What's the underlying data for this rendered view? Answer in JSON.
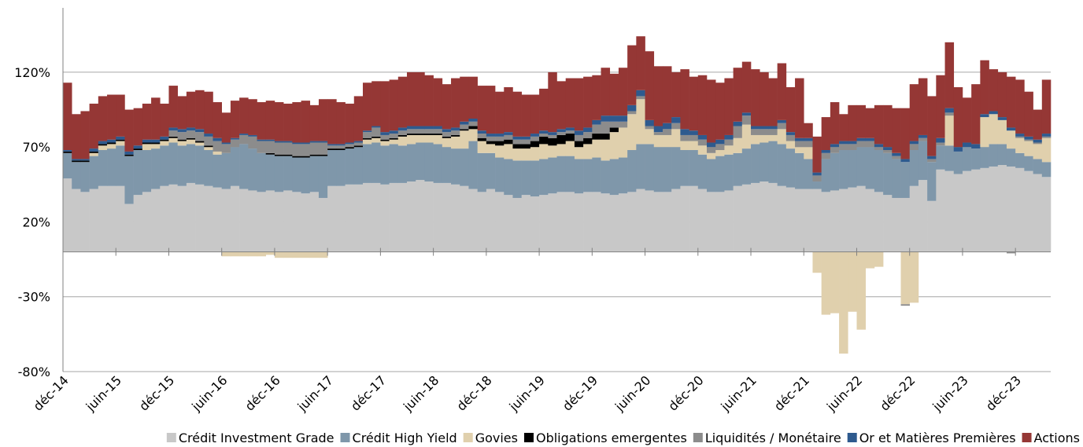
{
  "chart_data": {
    "type": "stacked-bar",
    "categories": [
      "déc-14",
      null,
      null,
      null,
      null,
      null,
      "juin-15",
      null,
      null,
      null,
      null,
      null,
      "déc-15",
      null,
      null,
      null,
      null,
      null,
      "juin-16",
      null,
      null,
      null,
      null,
      null,
      "déc-16",
      null,
      null,
      null,
      null,
      null,
      "juin-17",
      null,
      null,
      null,
      null,
      null,
      "déc-17",
      null,
      null,
      null,
      null,
      null,
      "juin-18",
      null,
      null,
      null,
      null,
      null,
      "déc-18",
      null,
      null,
      null,
      null,
      null,
      "juin-19",
      null,
      null,
      null,
      null,
      null,
      "déc-19",
      null,
      null,
      null,
      null,
      null,
      "juin-20",
      null,
      null,
      null,
      null,
      null,
      "déc-20",
      null,
      null,
      null,
      null,
      null,
      "juin-21",
      null,
      null,
      null,
      null,
      null,
      "déc-21",
      null,
      null,
      null,
      null,
      null,
      "juin-22",
      null,
      null,
      null,
      null,
      null,
      "déc-22",
      null,
      null,
      null,
      null,
      null,
      "juin-23",
      null,
      null,
      null,
      null,
      null,
      "déc-23",
      null,
      null,
      null
    ],
    "series": [
      {
        "name": "Crédit Investment Grade",
        "color": "#c8c8c8",
        "values": [
          49,
          42,
          40,
          42,
          44,
          44,
          44,
          32,
          38,
          40,
          42,
          44,
          45,
          44,
          46,
          45,
          44,
          43,
          42,
          44,
          42,
          41,
          40,
          41,
          40,
          41,
          40,
          39,
          40,
          36,
          44,
          44,
          45,
          45,
          46,
          46,
          45,
          46,
          46,
          47,
          48,
          47,
          46,
          46,
          45,
          44,
          42,
          40,
          42,
          40,
          38,
          36,
          38,
          37,
          38,
          39,
          40,
          40,
          39,
          40,
          40,
          39,
          38,
          39,
          40,
          42,
          41,
          40,
          40,
          42,
          44,
          44,
          42,
          40,
          40,
          41,
          44,
          45,
          46,
          47,
          46,
          44,
          43,
          42,
          42,
          42,
          40,
          41,
          42,
          43,
          44,
          42,
          40,
          38,
          36,
          36,
          44,
          48,
          34,
          55,
          54,
          52,
          54,
          55,
          56,
          57,
          58,
          57,
          56,
          54,
          52,
          50
        ]
      },
      {
        "name": "Crédit High Yield",
        "color": "#7f97aa",
        "values": [
          17,
          18,
          20,
          22,
          24,
          25,
          27,
          32,
          30,
          28,
          27,
          27,
          28,
          27,
          26,
          26,
          24,
          22,
          24,
          26,
          30,
          28,
          26,
          24,
          24,
          23,
          23,
          24,
          24,
          28,
          24,
          24,
          24,
          25,
          26,
          27,
          26,
          26,
          25,
          25,
          25,
          26,
          26,
          24,
          24,
          25,
          32,
          26,
          24,
          23,
          24,
          25,
          23,
          24,
          24,
          24,
          24,
          24,
          23,
          22,
          23,
          22,
          24,
          24,
          28,
          30,
          31,
          30,
          30,
          28,
          24,
          24,
          23,
          22,
          24,
          24,
          22,
          24,
          26,
          26,
          28,
          28,
          26,
          24,
          20,
          5,
          22,
          25,
          26,
          25,
          26,
          28,
          28,
          28,
          26,
          24,
          24,
          26,
          26,
          16,
          17,
          15,
          16,
          14,
          14,
          15,
          14,
          12,
          10,
          10,
          10,
          10
        ]
      },
      {
        "name": "Govies",
        "color": "#e0d0ad",
        "values": [
          0,
          0,
          0,
          2,
          3,
          3,
          3,
          0,
          0,
          4,
          3,
          3,
          3,
          3,
          3,
          2,
          2,
          2,
          -3,
          -3,
          -3,
          -3,
          -3,
          -2,
          -4,
          -4,
          -4,
          -4,
          -4,
          -4,
          0,
          0,
          0,
          0,
          3,
          3,
          3,
          3,
          6,
          6,
          5,
          5,
          6,
          6,
          8,
          12,
          8,
          8,
          6,
          8,
          10,
          8,
          8,
          9,
          10,
          8,
          8,
          10,
          8,
          10,
          12,
          14,
          18,
          20,
          24,
          30,
          10,
          8,
          8,
          12,
          6,
          6,
          6,
          4,
          4,
          6,
          10,
          16,
          6,
          5,
          4,
          10,
          5,
          4,
          8,
          -14,
          -42,
          -41,
          -68,
          -40,
          -52,
          -11,
          -10,
          0,
          0,
          -35,
          -34,
          0,
          0,
          0,
          20,
          0,
          0,
          0,
          20,
          20,
          16,
          12,
          10,
          10,
          10,
          16
        ]
      },
      {
        "name": "Obligations emergentes",
        "color": "#000000",
        "values": [
          1,
          1,
          1,
          1,
          1,
          1,
          1,
          1,
          1,
          1,
          1,
          1,
          1,
          1,
          1,
          1,
          1,
          0,
          0,
          0,
          0,
          0,
          0,
          1,
          1,
          1,
          1,
          1,
          1,
          1,
          1,
          1,
          1,
          1,
          1,
          1,
          1,
          1,
          1,
          1,
          1,
          1,
          1,
          1,
          1,
          1,
          2,
          2,
          2,
          3,
          3,
          3,
          3,
          4,
          5,
          5,
          6,
          5,
          4,
          4,
          4,
          4,
          3,
          0,
          0,
          0,
          0,
          0,
          0,
          0,
          0,
          0,
          0,
          0,
          0,
          0,
          0,
          0,
          0,
          0,
          0,
          0,
          0,
          0,
          0,
          0,
          0,
          0,
          0,
          0,
          0,
          0,
          0,
          0,
          0,
          0,
          0,
          0,
          0,
          0,
          0,
          0,
          0,
          0,
          0,
          0,
          0,
          0,
          0,
          0,
          0,
          0
        ]
      },
      {
        "name": "Liquidités / Monétaire",
        "color": "#8c8c8c",
        "values": [
          0,
          0,
          0,
          0,
          0,
          0,
          0,
          0,
          0,
          0,
          0,
          0,
          4,
          5,
          5,
          6,
          6,
          7,
          6,
          5,
          6,
          8,
          8,
          8,
          8,
          8,
          8,
          8,
          8,
          8,
          2,
          2,
          2,
          2,
          4,
          6,
          3,
          3,
          3,
          3,
          3,
          3,
          3,
          3,
          3,
          3,
          3,
          3,
          3,
          3,
          3,
          3,
          3,
          3,
          2,
          2,
          2,
          2,
          4,
          4,
          6,
          8,
          4,
          4,
          2,
          2,
          2,
          2,
          4,
          4,
          4,
          4,
          4,
          4,
          4,
          4,
          8,
          6,
          4,
          4,
          4,
          4,
          4,
          4,
          4,
          4,
          4,
          4,
          4,
          4,
          4,
          4,
          2,
          2,
          2,
          -1,
          4,
          2,
          2,
          2,
          2,
          0,
          0,
          0,
          0,
          0,
          0,
          -1,
          1,
          1,
          1,
          1
        ]
      },
      {
        "name": "Or et Matières Premières",
        "color": "#2e5a8e",
        "values": [
          1,
          1,
          1,
          2,
          2,
          2,
          2,
          2,
          2,
          2,
          2,
          2,
          2,
          2,
          2,
          2,
          2,
          2,
          1,
          1,
          1,
          1,
          1,
          1,
          1,
          1,
          1,
          1,
          1,
          1,
          1,
          1,
          1,
          1,
          1,
          1,
          2,
          2,
          2,
          2,
          2,
          2,
          2,
          2,
          2,
          2,
          2,
          2,
          2,
          2,
          2,
          2,
          2,
          2,
          2,
          2,
          2,
          2,
          3,
          3,
          3,
          4,
          4,
          4,
          4,
          4,
          4,
          4,
          4,
          4,
          4,
          3,
          3,
          3,
          3,
          3,
          3,
          2,
          2,
          2,
          2,
          2,
          2,
          2,
          2,
          2,
          2,
          2,
          2,
          2,
          2,
          2,
          2,
          2,
          2,
          2,
          2,
          2,
          2,
          3,
          3,
          3,
          3,
          3,
          2,
          2,
          2,
          2,
          2,
          2,
          2,
          2
        ]
      },
      {
        "name": "Actions",
        "color": "#953735",
        "values": [
          45,
          30,
          32,
          30,
          30,
          30,
          28,
          28,
          25,
          24,
          28,
          22,
          28,
          22,
          24,
          26,
          28,
          24,
          20,
          25,
          24,
          24,
          25,
          26,
          26,
          25,
          27,
          28,
          24,
          28,
          30,
          28,
          26,
          30,
          32,
          30,
          34,
          34,
          34,
          36,
          36,
          34,
          32,
          30,
          33,
          30,
          28,
          30,
          32,
          28,
          30,
          30,
          28,
          26,
          28,
          40,
          32,
          33,
          35,
          34,
          30,
          32,
          28,
          32,
          40,
          36,
          46,
          40,
          38,
          30,
          40,
          36,
          40,
          42,
          38,
          38,
          36,
          34,
          38,
          36,
          32,
          38,
          30,
          40,
          10,
          24,
          22,
          28,
          18,
          24,
          22,
          20,
          26,
          28,
          30,
          34,
          38,
          38,
          40,
          42,
          44,
          40,
          30,
          40,
          36,
          28,
          30,
          34,
          36,
          30,
          20,
          36
        ]
      }
    ],
    "ylim": [
      -80,
      163
    ],
    "yticks": [
      {
        "value": -80,
        "label": "-80%"
      },
      {
        "value": -30,
        "label": "-30%"
      },
      {
        "value": 20,
        "label": "20%"
      },
      {
        "value": 70,
        "label": "70%"
      },
      {
        "value": 120,
        "label": "120%"
      }
    ],
    "grid": true,
    "legend": "bottom"
  }
}
